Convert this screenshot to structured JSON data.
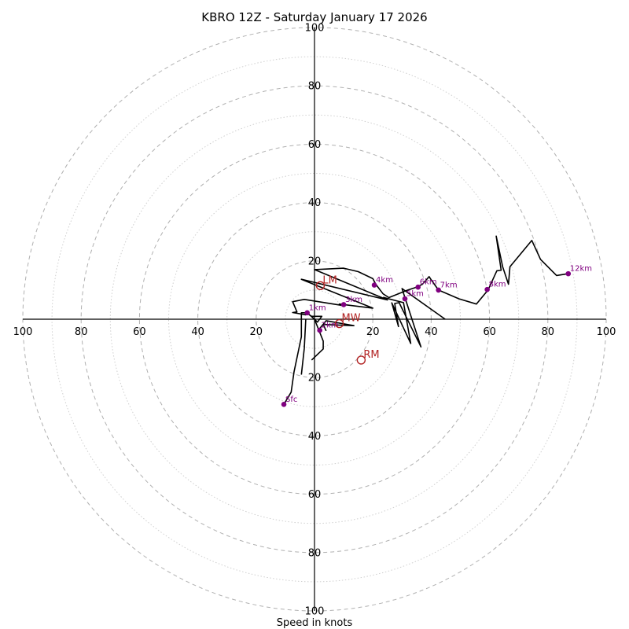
{
  "chart_data": {
    "type": "hodograph",
    "title": "KBRO 12Z - Saturday January 17 2026",
    "xlabel": "Speed in knots",
    "rmax": 100,
    "ring_major": [
      20,
      40,
      60,
      80,
      100
    ],
    "ring_minor": [
      10,
      30,
      50,
      70,
      90
    ],
    "ticks": {
      "top": [
        "20",
        "40",
        "60",
        "80",
        "100"
      ],
      "bottom": [
        "20",
        "40",
        "60",
        "80",
        "100"
      ],
      "left": [
        "100",
        "80",
        "60",
        "40",
        "20"
      ],
      "right": [
        "20",
        "40",
        "60",
        "80",
        "100"
      ]
    },
    "tick_values": {
      "top": [
        20,
        40,
        60,
        80,
        100
      ],
      "bottom": [
        20,
        40,
        60,
        80,
        100
      ],
      "left": [
        100,
        80,
        60,
        40,
        20
      ],
      "right": [
        20,
        40,
        60,
        80,
        100
      ]
    },
    "hodograph": [
      [
        -10.5,
        -29.2
      ],
      [
        -8,
        -25
      ],
      [
        -7,
        -18
      ],
      [
        -4.5,
        -6
      ],
      [
        -4.5,
        2.2
      ],
      [
        -2.5,
        2.2
      ],
      [
        0,
        0
      ],
      [
        1,
        -1
      ],
      [
        2.5,
        1
      ],
      [
        -1,
        1
      ],
      [
        -2.5,
        2
      ],
      [
        -3,
        1.5
      ],
      [
        -7.5,
        2.3
      ],
      [
        -6,
        2.5
      ],
      [
        -7.5,
        6
      ],
      [
        -3.5,
        6.8
      ],
      [
        9,
        4.8
      ],
      [
        8.5,
        5.2
      ],
      [
        20,
        3.8
      ],
      [
        -4.5,
        13.7
      ],
      [
        25,
        6.6
      ],
      [
        0,
        17
      ],
      [
        10,
        17.5
      ],
      [
        15,
        16.3
      ],
      [
        20,
        13.9
      ],
      [
        21,
        12
      ],
      [
        23.5,
        8.7
      ],
      [
        25.5,
        7.4
      ],
      [
        32,
        10
      ],
      [
        35,
        11
      ],
      [
        37,
        12
      ],
      [
        39.3,
        14.6
      ],
      [
        40,
        13.5
      ],
      [
        42.5,
        10
      ],
      [
        49.5,
        7
      ],
      [
        55.5,
        5.2
      ],
      [
        59.5,
        10
      ],
      [
        62.5,
        16.6
      ],
      [
        64,
        16.8
      ],
      [
        62.3,
        28.5
      ],
      [
        64.5,
        18
      ],
      [
        66.5,
        12
      ],
      [
        67,
        18
      ],
      [
        74.5,
        27
      ],
      [
        77.5,
        20.5
      ],
      [
        83,
        15
      ],
      [
        87,
        15.6
      ]
    ],
    "hodograph_extra": [
      [
        [
          4,
          -4
        ],
        [
          3,
          -1.8
        ],
        [
          13.5,
          -2.2
        ],
        [
          4,
          -0.5
        ],
        [
          1.5,
          -3.5
        ]
      ],
      [
        [
          -3,
          0
        ],
        [
          -3.5,
          -10
        ],
        [
          -4.5,
          -19
        ]
      ],
      [
        [
          0,
          0
        ],
        [
          3,
          -7.5
        ],
        [
          3,
          -10.2
        ],
        [
          -1,
          -14
        ]
      ],
      [
        [
          44.8,
          0
        ],
        [
          30,
          10.5
        ],
        [
          36.5,
          -9.5
        ],
        [
          29,
          5.7
        ],
        [
          27.5,
          5.4
        ],
        [
          28.8,
          -2.5
        ],
        [
          26.5,
          5.6
        ],
        [
          33,
          -8.3
        ],
        [
          30.5,
          5.7
        ],
        [
          23.5,
          7.5
        ]
      ]
    ],
    "height_markers": [
      {
        "label": "Sfc",
        "u": -10.5,
        "v": -29.2
      },
      {
        "label": "1km",
        "u": -2.5,
        "v": 2.2
      },
      {
        "label": "2km",
        "u": 1.8,
        "v": -3.8
      },
      {
        "label": "3km",
        "u": 10,
        "v": 5
      },
      {
        "label": "4km",
        "u": 20.5,
        "v": 11.7
      },
      {
        "label": "5km",
        "u": 31,
        "v": 7
      },
      {
        "label": "6km",
        "u": 35.5,
        "v": 11
      },
      {
        "label": "7km",
        "u": 42.5,
        "v": 10
      },
      {
        "label": "8km",
        "u": 59.2,
        "v": 10.2
      },
      {
        "label": "12km",
        "u": 87,
        "v": 15.6
      }
    ],
    "storm_motions": [
      {
        "label": "LM",
        "u": 2,
        "v": 11.5
      },
      {
        "label": "MW",
        "u": 8.5,
        "v": -1.5
      },
      {
        "label": "RM",
        "u": 16,
        "v": -14
      }
    ]
  }
}
